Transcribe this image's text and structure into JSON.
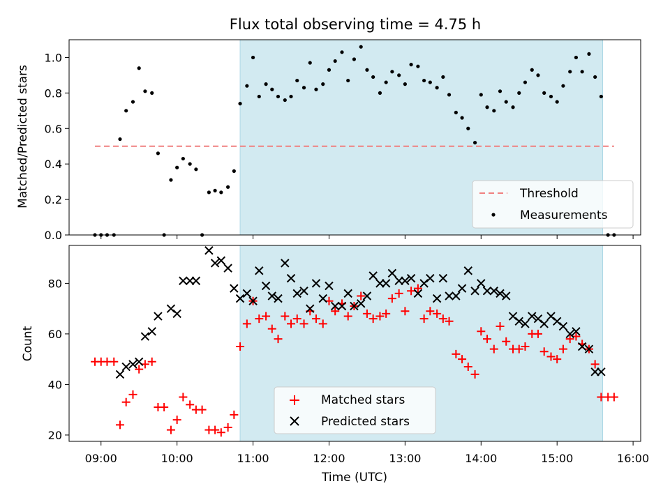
{
  "chart_data": [
    {
      "type": "scatter",
      "title": "Flux total observing time = 4.75 h",
      "xlabel": "",
      "ylabel": "Matched/Predicted stars",
      "xlim": [
        8.58,
        16.1
      ],
      "ylim": [
        0,
        1.1
      ],
      "yticks": [
        "0.0",
        "0.2",
        "0.4",
        "0.6",
        "0.8",
        "1.0"
      ],
      "shaded_span": [
        10.83,
        15.6
      ],
      "shade_color": "#add8e6",
      "threshold": {
        "name": "Threshold",
        "value": 0.5,
        "x_range": [
          8.92,
          15.75
        ],
        "color": "#f08080",
        "style": "dashed"
      },
      "series": [
        {
          "name": "Measurements",
          "color": "#000000",
          "marker": "dot",
          "x": [
            8.92,
            9.0,
            9.08,
            9.17,
            9.25,
            9.33,
            9.42,
            9.5,
            9.58,
            9.67,
            9.75,
            9.83,
            9.92,
            10.0,
            10.08,
            10.17,
            10.25,
            10.33,
            10.42,
            10.5,
            10.58,
            10.67,
            10.75,
            10.83,
            10.92,
            11.0,
            11.08,
            11.17,
            11.25,
            11.33,
            11.42,
            11.5,
            11.58,
            11.67,
            11.75,
            11.83,
            11.92,
            12.0,
            12.08,
            12.17,
            12.25,
            12.33,
            12.42,
            12.5,
            12.58,
            12.67,
            12.75,
            12.83,
            12.92,
            13.0,
            13.08,
            13.17,
            13.25,
            13.33,
            13.42,
            13.5,
            13.58,
            13.67,
            13.75,
            13.83,
            13.92,
            14.0,
            14.08,
            14.17,
            14.25,
            14.33,
            14.42,
            14.5,
            14.58,
            14.67,
            14.75,
            14.83,
            14.92,
            15.0,
            15.08,
            15.17,
            15.25,
            15.33,
            15.42,
            15.5,
            15.58,
            15.67,
            15.75
          ],
          "y": [
            0.0,
            0.0,
            0.0,
            0.0,
            0.54,
            0.7,
            0.75,
            0.94,
            0.81,
            0.8,
            0.46,
            0.0,
            0.31,
            0.38,
            0.43,
            0.4,
            0.37,
            0.0,
            0.24,
            0.25,
            0.24,
            0.27,
            0.36,
            0.74,
            0.84,
            1.0,
            0.78,
            0.85,
            0.82,
            0.78,
            0.76,
            0.78,
            0.87,
            0.83,
            0.97,
            0.82,
            0.85,
            0.93,
            0.98,
            1.03,
            0.87,
            0.99,
            1.06,
            0.93,
            0.89,
            0.8,
            0.86,
            0.92,
            0.9,
            0.85,
            0.96,
            0.95,
            0.87,
            0.86,
            0.83,
            0.89,
            0.79,
            0.69,
            0.66,
            0.6,
            0.52,
            0.79,
            0.72,
            0.7,
            0.81,
            0.75,
            0.72,
            0.8,
            0.86,
            0.93,
            0.9,
            0.8,
            0.78,
            0.75,
            0.84,
            0.92,
            1.0,
            0.92,
            1.02,
            0.89,
            0.78,
            0.0,
            0.0
          ]
        }
      ],
      "legend": {
        "placement": "lower right",
        "entries": [
          "Threshold",
          "Measurements"
        ]
      }
    },
    {
      "type": "scatter",
      "title": "",
      "xlabel": "Time (UTC)",
      "ylabel": "Count",
      "xlim": [
        8.58,
        16.1
      ],
      "ylim": [
        17.5,
        95
      ],
      "yticks": [
        "20",
        "40",
        "60",
        "80"
      ],
      "xticks": [
        "09:00",
        "10:00",
        "11:00",
        "12:00",
        "13:00",
        "14:00",
        "15:00",
        "16:00"
      ],
      "shaded_span": [
        10.83,
        15.6
      ],
      "shade_color": "#add8e6",
      "series": [
        {
          "name": "Matched stars",
          "color": "#ff0000",
          "marker": "plus",
          "x": [
            8.92,
            9.0,
            9.08,
            9.17,
            9.25,
            9.33,
            9.42,
            9.5,
            9.58,
            9.67,
            9.75,
            9.83,
            9.92,
            10.0,
            10.08,
            10.17,
            10.25,
            10.33,
            10.42,
            10.5,
            10.58,
            10.67,
            10.75,
            10.83,
            10.92,
            11.0,
            11.08,
            11.17,
            11.25,
            11.33,
            11.42,
            11.5,
            11.58,
            11.67,
            11.75,
            11.83,
            11.92,
            12.0,
            12.08,
            12.17,
            12.25,
            12.33,
            12.42,
            12.5,
            12.58,
            12.67,
            12.75,
            12.83,
            12.92,
            13.0,
            13.08,
            13.17,
            13.25,
            13.33,
            13.42,
            13.5,
            13.58,
            13.67,
            13.75,
            13.83,
            13.92,
            14.0,
            14.08,
            14.17,
            14.25,
            14.33,
            14.42,
            14.5,
            14.58,
            14.67,
            14.75,
            14.83,
            14.92,
            15.0,
            15.08,
            15.17,
            15.25,
            15.33,
            15.42,
            15.5,
            15.58,
            15.67,
            15.75
          ],
          "y": [
            49,
            49,
            49,
            49,
            24,
            33,
            36,
            46,
            48,
            49,
            31,
            31,
            22,
            26,
            35,
            32,
            30,
            30,
            22,
            22,
            21,
            23,
            28,
            55,
            64,
            73,
            66,
            67,
            62,
            58,
            67,
            64,
            66,
            64,
            69,
            66,
            64,
            73,
            69,
            72,
            67,
            71,
            75,
            68,
            66,
            67,
            68,
            74,
            76,
            69,
            77,
            78,
            66,
            69,
            68,
            66,
            65,
            52,
            50,
            47,
            44,
            61,
            58,
            54,
            63,
            57,
            54,
            54,
            55,
            60,
            60,
            53,
            51,
            50,
            54,
            58,
            59,
            56,
            54,
            48,
            35,
            35,
            35
          ]
        },
        {
          "name": "Predicted stars",
          "color": "#000000",
          "marker": "x",
          "x": [
            9.25,
            9.33,
            9.42,
            9.5,
            9.58,
            9.67,
            9.75,
            9.92,
            10.0,
            10.08,
            10.17,
            10.25,
            10.42,
            10.5,
            10.58,
            10.67,
            10.75,
            10.83,
            10.92,
            11.0,
            11.08,
            11.17,
            11.25,
            11.33,
            11.42,
            11.5,
            11.58,
            11.67,
            11.75,
            11.83,
            11.92,
            12.0,
            12.08,
            12.17,
            12.25,
            12.33,
            12.42,
            12.5,
            12.58,
            12.67,
            12.75,
            12.83,
            12.92,
            13.0,
            13.08,
            13.17,
            13.25,
            13.33,
            13.42,
            13.5,
            13.58,
            13.67,
            13.75,
            13.83,
            13.92,
            14.0,
            14.08,
            14.17,
            14.25,
            14.33,
            14.42,
            14.5,
            14.58,
            14.67,
            14.75,
            14.83,
            14.92,
            15.0,
            15.08,
            15.17,
            15.25,
            15.33,
            15.42,
            15.5,
            15.58
          ],
          "y": [
            44,
            47,
            48,
            49,
            59,
            61,
            67,
            70,
            68,
            81,
            81,
            81,
            93,
            88,
            89,
            86,
            78,
            74,
            76,
            73,
            85,
            79,
            75,
            74,
            88,
            82,
            76,
            77,
            70,
            80,
            74,
            79,
            71,
            71,
            76,
            71,
            72,
            75,
            83,
            80,
            80,
            84,
            81,
            81,
            82,
            76,
            80,
            82,
            74,
            82,
            75,
            75,
            78,
            85,
            77,
            80,
            77,
            77,
            76,
            75,
            67,
            65,
            64,
            67,
            66,
            64,
            67,
            65,
            63,
            60,
            61,
            55,
            54,
            45,
            45
          ]
        }
      ],
      "legend": {
        "placement": "lower center",
        "entries": [
          "Matched stars",
          "Predicted stars"
        ]
      }
    }
  ]
}
